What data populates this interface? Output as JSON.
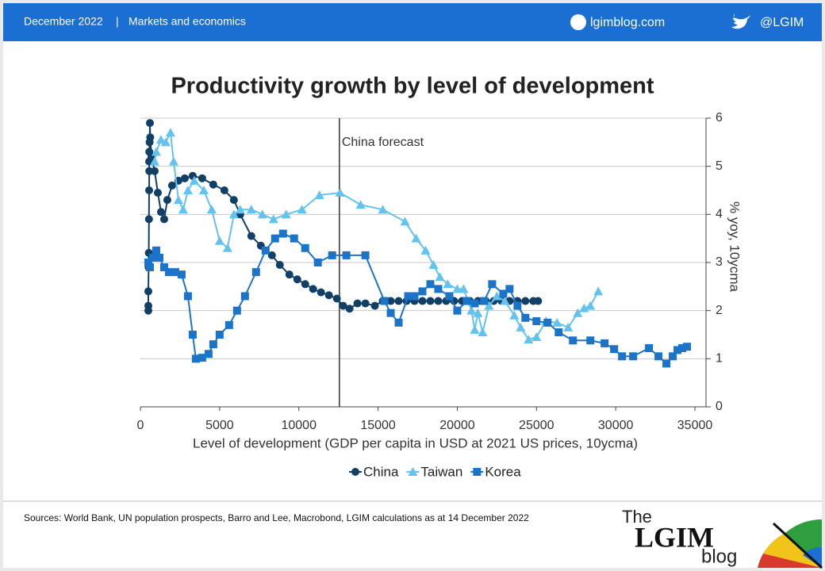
{
  "header": {
    "date": "December 2022",
    "separator": "|",
    "section": "Markets and economics",
    "site": "lgimblog.com",
    "handle": "@LGIM"
  },
  "chart_data": {
    "type": "line",
    "title": "Productivity growth by level of development",
    "x_label": "Level of development (GDP per capita in USD at 2021 US prices, 10ycma)",
    "y_label": "% yoy, 10ycma",
    "xlim": [
      0,
      35700
    ],
    "xticks": [
      0,
      5000,
      10000,
      15000,
      20000,
      25000,
      30000,
      35000
    ],
    "ylim": [
      0,
      6
    ],
    "yticks": [
      0,
      1,
      2,
      3,
      4,
      5,
      6
    ],
    "grid": true,
    "y_axis_side": "right",
    "legend": "bottom",
    "annotation": {
      "text": "China forecast",
      "x": 12560
    },
    "series": [
      {
        "name": "China",
        "color": "#123f66",
        "marker": "circle",
        "x": [
          500,
          500,
          500,
          520,
          530,
          540,
          550,
          560,
          550,
          560,
          580,
          600,
          620,
          700,
          900,
          1100,
          1300,
          1500,
          1700,
          2000,
          2400,
          2800,
          3300,
          3900,
          4600,
          5300,
          5900,
          6300,
          7000,
          7600,
          8300,
          8800,
          9400,
          9900,
          10400,
          10900,
          11400,
          11900,
          12400,
          12800,
          13200,
          13700,
          14200,
          14800,
          15300,
          15800,
          16300,
          16800,
          17300,
          17800,
          18300,
          18800,
          19300,
          19800,
          20300,
          20800,
          21300,
          21800,
          22300,
          22800,
          23300,
          23800,
          24300,
          24800,
          25100
        ],
        "values": [
          2.0,
          2.1,
          2.4,
          2.9,
          3.2,
          3.9,
          4.5,
          4.9,
          5.1,
          5.3,
          5.5,
          5.9,
          5.6,
          5.2,
          4.9,
          4.45,
          4.05,
          3.9,
          4.3,
          4.6,
          4.7,
          4.75,
          4.8,
          4.75,
          4.62,
          4.5,
          4.3,
          4.0,
          3.55,
          3.35,
          3.15,
          2.95,
          2.75,
          2.65,
          2.55,
          2.45,
          2.38,
          2.32,
          2.25,
          2.1,
          2.04,
          2.15,
          2.15,
          2.1,
          2.2,
          2.2,
          2.2,
          2.2,
          2.2,
          2.2,
          2.2,
          2.2,
          2.2,
          2.2,
          2.2,
          2.2,
          2.2,
          2.2,
          2.2,
          2.2,
          2.2,
          2.2,
          2.2,
          2.2,
          2.2
        ]
      },
      {
        "name": "Taiwan",
        "color": "#63c3ee",
        "marker": "triangle",
        "x": [
          900,
          1000,
          1300,
          1600,
          1900,
          2100,
          2400,
          2700,
          3000,
          3400,
          4000,
          4500,
          5000,
          5500,
          5900,
          6300,
          7000,
          7700,
          8400,
          9200,
          10200,
          11300,
          12600,
          13900,
          15300,
          16700,
          17400,
          18000,
          18500,
          18900,
          19400,
          20000,
          20400,
          20900,
          21100,
          21300,
          21600,
          22000,
          22500,
          23000,
          23600,
          24000,
          24500,
          25000,
          25600,
          26300,
          27000,
          27600,
          28000,
          28400,
          28900
        ],
        "values": [
          5.1,
          5.3,
          5.55,
          5.5,
          5.7,
          5.1,
          4.3,
          4.1,
          4.5,
          4.7,
          4.5,
          4.1,
          3.45,
          3.3,
          4.0,
          4.1,
          4.1,
          4.0,
          3.9,
          4.0,
          4.1,
          4.4,
          4.45,
          4.2,
          4.1,
          3.85,
          3.5,
          3.25,
          2.95,
          2.7,
          2.55,
          2.45,
          2.45,
          2.0,
          1.6,
          1.95,
          1.55,
          2.1,
          2.3,
          2.2,
          1.9,
          1.65,
          1.4,
          1.45,
          1.78,
          1.75,
          1.65,
          1.95,
          2.05,
          2.1,
          2.4
        ]
      },
      {
        "name": "Korea",
        "color": "#1c74c9",
        "marker": "square",
        "x": [
          500,
          600,
          800,
          1000,
          1200,
          1500,
          1800,
          2200,
          2600,
          3000,
          3300,
          3500,
          3900,
          4300,
          4600,
          5000,
          5600,
          6100,
          6600,
          7300,
          7900,
          8500,
          9000,
          9700,
          10400,
          11200,
          12100,
          13000,
          14200,
          15400,
          15800,
          16300,
          16900,
          17300,
          17800,
          18300,
          18800,
          19500,
          20000,
          20600,
          21100,
          21700,
          22200,
          22900,
          23300,
          23800,
          24300,
          25000,
          25700,
          26400,
          27300,
          28400,
          29300,
          29900,
          30400,
          31100,
          32100,
          32700,
          33200,
          33600,
          33900,
          34200,
          34500
        ],
        "values": [
          3.0,
          2.9,
          3.1,
          3.25,
          3.1,
          2.9,
          2.8,
          2.8,
          2.75,
          2.3,
          1.5,
          1.0,
          1.02,
          1.1,
          1.3,
          1.5,
          1.7,
          2.0,
          2.3,
          2.8,
          3.25,
          3.5,
          3.6,
          3.5,
          3.3,
          3.0,
          3.15,
          3.15,
          3.15,
          2.2,
          1.95,
          1.75,
          2.3,
          2.3,
          2.4,
          2.55,
          2.45,
          2.3,
          2.0,
          2.2,
          2.15,
          2.2,
          2.55,
          2.35,
          2.45,
          2.1,
          1.85,
          1.78,
          1.75,
          1.55,
          1.38,
          1.38,
          1.32,
          1.2,
          1.05,
          1.05,
          1.22,
          1.05,
          0.9,
          1.05,
          1.18,
          1.22,
          1.25
        ]
      }
    ]
  },
  "footer": {
    "sources": "Sources: World Bank, UN population prospects, Barro and Lee, Macrobond, LGIM calculations as at 14 December 2022",
    "logo_the": "The",
    "logo_main": "LGIM",
    "logo_blog": "blog"
  }
}
